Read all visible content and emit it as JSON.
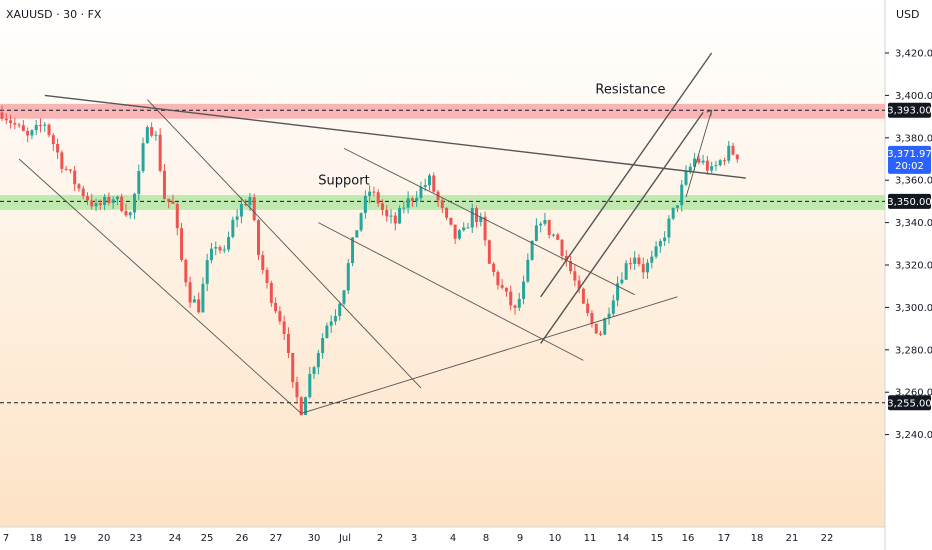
{
  "header": {
    "symbol": "XAUUSD",
    "interval": "30",
    "source": "FX",
    "title": "XAUUSD · 30 · FX"
  },
  "price_axis": {
    "unit": "USD"
  },
  "colors": {
    "up_candle": "#26a69a",
    "down_candle": "#ef5350",
    "resistance_zone": "#f7a9a9",
    "support_zone": "#b5e6a6",
    "current_price_box": "#2962ff",
    "level_box": "#131722",
    "trendline": "#555555",
    "bg_top": "#ffffff",
    "bg_bottom": "#fde3c6"
  },
  "chart_data": {
    "type": "candlestick",
    "title": "XAUUSD · 30 · FX",
    "xlabel": "",
    "ylabel": "USD",
    "ylim": [
      3233,
      3432
    ],
    "grid": false,
    "x_ticks": [
      "7",
      "18",
      "19",
      "20",
      "23",
      "24",
      "25",
      "26",
      "27",
      "30",
      "Jul",
      "2",
      "3",
      "4",
      "8",
      "9",
      "10",
      "11",
      "14",
      "15",
      "16",
      "17",
      "18",
      "21",
      "22"
    ],
    "y_ticks": [
      3240,
      3260,
      3280,
      3300,
      3320,
      3340,
      3360,
      3380,
      3400,
      3420
    ],
    "y_tick_labels": [
      "3,240.00",
      "3,260.00",
      "3,280.00",
      "3,300.00",
      "3,320.00",
      "3,340.00",
      "3,360.00",
      "3,380.00",
      "3,400.00",
      "3,420.00"
    ],
    "close_path": [
      [
        0,
        3392
      ],
      [
        3,
        3380
      ],
      [
        5,
        3387
      ],
      [
        7,
        3368
      ],
      [
        9,
        3356
      ],
      [
        11,
        3347
      ],
      [
        13,
        3352
      ],
      [
        15,
        3344
      ],
      [
        16,
        3362
      ],
      [
        17,
        3388
      ],
      [
        18,
        3380
      ],
      [
        19,
        3352
      ],
      [
        20,
        3348
      ],
      [
        21,
        3322
      ],
      [
        22,
        3305
      ],
      [
        23,
        3300
      ],
      [
        24,
        3320
      ],
      [
        25,
        3330
      ],
      [
        26,
        3325
      ],
      [
        27,
        3340
      ],
      [
        28,
        3348
      ],
      [
        29,
        3352
      ],
      [
        30,
        3325
      ],
      [
        31,
        3310
      ],
      [
        32,
        3300
      ],
      [
        33,
        3290
      ],
      [
        34,
        3262
      ],
      [
        35,
        3252
      ],
      [
        36,
        3268
      ],
      [
        37,
        3280
      ],
      [
        38,
        3292
      ],
      [
        39,
        3298
      ],
      [
        40,
        3310
      ],
      [
        41,
        3330
      ],
      [
        42,
        3345
      ],
      [
        43,
        3355
      ],
      [
        44,
        3350
      ],
      [
        45,
        3342
      ],
      [
        46,
        3340
      ],
      [
        47,
        3348
      ],
      [
        48,
        3352
      ],
      [
        49,
        3356
      ],
      [
        50,
        3360
      ],
      [
        51,
        3350
      ],
      [
        52,
        3340
      ],
      [
        53,
        3333
      ],
      [
        54,
        3335
      ],
      [
        55,
        3345
      ],
      [
        56,
        3340
      ],
      [
        57,
        3320
      ],
      [
        58,
        3312
      ],
      [
        59,
        3305
      ],
      [
        60,
        3298
      ],
      [
        61,
        3310
      ],
      [
        62,
        3330
      ],
      [
        63,
        3342
      ],
      [
        64,
        3336
      ],
      [
        65,
        3332
      ],
      [
        66,
        3322
      ],
      [
        67,
        3312
      ],
      [
        68,
        3300
      ],
      [
        69,
        3292
      ],
      [
        70,
        3288
      ],
      [
        71,
        3300
      ],
      [
        72,
        3312
      ],
      [
        73,
        3320
      ],
      [
        74,
        3325
      ],
      [
        75,
        3318
      ],
      [
        76,
        3322
      ],
      [
        77,
        3330
      ],
      [
        78,
        3340
      ],
      [
        79,
        3350
      ],
      [
        80,
        3362
      ],
      [
        81,
        3370
      ],
      [
        82,
        3368
      ],
      [
        83,
        3364
      ],
      [
        84,
        3369
      ],
      [
        85,
        3374
      ],
      [
        86,
        3371.97
      ]
    ],
    "levels": [
      {
        "price": 3393.0,
        "label": "3,393.00",
        "style": "dashed"
      },
      {
        "price": 3350.0,
        "label": "3,350.00",
        "style": "dashed"
      },
      {
        "price": 3255.0,
        "label": "3,255.00",
        "style": "dashed"
      }
    ],
    "current_price": {
      "price": 3371.97,
      "label": "3,371.97",
      "countdown": "20:02"
    },
    "zones": [
      {
        "name": "Resistance",
        "from": 3389,
        "to": 3396
      },
      {
        "name": "Support",
        "from": 3346,
        "to": 3353
      }
    ],
    "annotations": [
      {
        "text": "Resistance",
        "x_idx": 73.5,
        "price": 3401
      },
      {
        "text": "Support",
        "x_idx": 40,
        "price": 3358
      }
    ],
    "trendlines": [
      {
        "p1": [
          5,
          3400
        ],
        "p2": [
          87,
          3361
        ],
        "weight": "bold"
      },
      {
        "p1": [
          2,
          3370
        ],
        "p2": [
          35,
          3250
        ],
        "weight": "thin"
      },
      {
        "p1": [
          17,
          3398
        ],
        "p2": [
          49,
          3262
        ],
        "weight": "thin"
      },
      {
        "p1": [
          35,
          3250
        ],
        "p2": [
          79,
          3305
        ],
        "weight": "thin"
      },
      {
        "p1": [
          40,
          3375
        ],
        "p2": [
          74,
          3306
        ],
        "weight": "thin"
      },
      {
        "p1": [
          37,
          3340
        ],
        "p2": [
          68,
          3275
        ],
        "weight": "thin"
      },
      {
        "p1": [
          63,
          3305
        ],
        "p2": [
          83,
          3420
        ],
        "weight": "bold"
      },
      {
        "p1": [
          63,
          3283
        ],
        "p2": [
          82,
          3392
        ],
        "weight": "bold"
      },
      {
        "p1": [
          80,
          3352
        ],
        "p2": [
          83,
          3393
        ],
        "weight": "thin"
      }
    ]
  }
}
